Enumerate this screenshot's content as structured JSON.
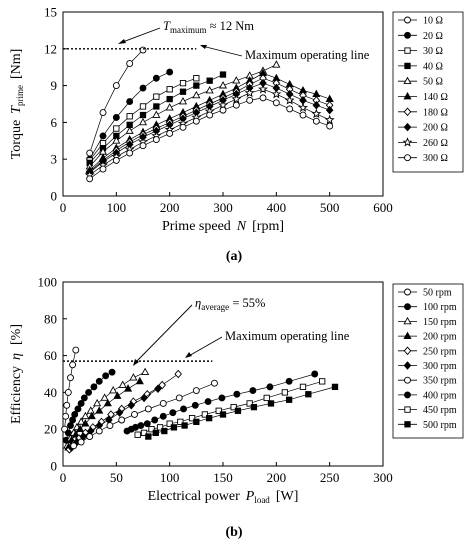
{
  "chart_data": [
    {
      "panel_label": "(a)",
      "type": "scatter",
      "ylabel": "Torque",
      "ylabel_symbol": "T",
      "ylabel_sub": "prime",
      "ylabel_unit": "[Nm]",
      "xlabel": "Prime speed",
      "xlabel_symbol": "N",
      "xlabel_unit": "[rpm]",
      "xlim": [
        0,
        600
      ],
      "ylim": [
        0,
        15
      ],
      "xticks": [
        "0",
        "100",
        "200",
        "300",
        "400",
        "500",
        "600"
      ],
      "yticks": [
        "0",
        "3",
        "6",
        "9",
        "12",
        "15"
      ],
      "annotations": [
        {
          "prefix": "T",
          "sub": "maximum",
          "text": " ≈ 12 Nm",
          "value": 12,
          "line_x_range": [
            0,
            250
          ]
        },
        {
          "text": "Maximum operating line"
        }
      ],
      "legend_position": "right",
      "series": [
        {
          "name": "10 Ω",
          "marker": "circle-open",
          "x": [
            50,
            75,
            100,
            125,
            150
          ],
          "y": [
            3.5,
            6.8,
            9.0,
            10.8,
            11.9
          ]
        },
        {
          "name": "20 Ω",
          "marker": "circle-filled",
          "x": [
            50,
            75,
            100,
            125,
            150,
            175,
            200
          ],
          "y": [
            3.0,
            4.9,
            6.4,
            7.7,
            8.8,
            9.6,
            10.1
          ]
        },
        {
          "name": "30 Ω",
          "marker": "square-open",
          "x": [
            50,
            75,
            100,
            125,
            150,
            175,
            200,
            225,
            250
          ],
          "y": [
            2.9,
            4.3,
            5.5,
            6.5,
            7.3,
            8.1,
            8.7,
            9.2,
            9.6
          ]
        },
        {
          "name": "40 Ω",
          "marker": "square-filled",
          "x": [
            50,
            75,
            100,
            125,
            150,
            175,
            200,
            225,
            250,
            275,
            300
          ],
          "y": [
            2.7,
            3.9,
            4.9,
            5.8,
            6.6,
            7.3,
            7.9,
            8.5,
            9.0,
            9.4,
            9.9
          ]
        },
        {
          "name": "50 Ω",
          "marker": "triangle-open",
          "x": [
            50,
            75,
            100,
            125,
            150,
            175,
            200,
            225,
            250,
            275,
            300,
            325,
            350,
            375,
            400
          ],
          "y": [
            2.4,
            3.6,
            4.5,
            5.3,
            6.0,
            6.6,
            7.2,
            7.7,
            8.2,
            8.6,
            9.0,
            9.4,
            9.8,
            10.2,
            10.7
          ]
        },
        {
          "name": "140 Ω",
          "marker": "triangle-filled",
          "x": [
            50,
            75,
            100,
            125,
            150,
            175,
            200,
            225,
            250,
            275,
            300,
            325,
            350,
            375,
            400,
            425,
            450,
            475,
            500
          ],
          "y": [
            2.1,
            3.1,
            3.9,
            4.6,
            5.2,
            5.8,
            6.3,
            6.8,
            7.3,
            7.8,
            8.3,
            8.8,
            9.4,
            10.0,
            9.6,
            9.1,
            8.6,
            8.3,
            7.9
          ]
        },
        {
          "name": "180 Ω",
          "marker": "diamond-open",
          "x": [
            50,
            75,
            100,
            125,
            150,
            175,
            200,
            225,
            250,
            275,
            300,
            325,
            350,
            375,
            400,
            425,
            450,
            475,
            500
          ],
          "y": [
            2.0,
            2.9,
            3.7,
            4.4,
            5.0,
            5.5,
            6.0,
            6.5,
            7.0,
            7.5,
            8.0,
            8.5,
            9.1,
            9.6,
            9.2,
            8.7,
            8.2,
            7.8,
            7.4
          ]
        },
        {
          "name": "200 Ω",
          "marker": "diamond-filled",
          "x": [
            50,
            75,
            100,
            125,
            150,
            175,
            200,
            225,
            250,
            275,
            300,
            325,
            350,
            375,
            400,
            425,
            450,
            475,
            500
          ],
          "y": [
            1.9,
            2.8,
            3.5,
            4.2,
            4.8,
            5.3,
            5.8,
            6.3,
            6.8,
            7.3,
            7.8,
            8.3,
            8.8,
            9.2,
            8.8,
            8.3,
            7.8,
            7.4,
            7.0
          ]
        },
        {
          "name": "260 Ω",
          "marker": "star-open",
          "x": [
            50,
            75,
            100,
            125,
            150,
            175,
            200,
            225,
            250,
            275,
            300,
            325,
            350,
            375,
            400,
            425,
            450,
            475,
            500
          ],
          "y": [
            1.7,
            2.5,
            3.2,
            3.8,
            4.4,
            4.9,
            5.4,
            5.9,
            6.4,
            6.9,
            7.4,
            7.9,
            8.4,
            8.7,
            8.3,
            7.8,
            7.2,
            6.7,
            6.2
          ]
        },
        {
          "name": "300 Ω",
          "marker": "circle-open",
          "x": [
            50,
            75,
            100,
            125,
            150,
            175,
            200,
            225,
            250,
            275,
            300,
            325,
            350,
            375,
            400,
            425,
            450,
            475,
            500
          ],
          "y": [
            1.4,
            2.2,
            2.9,
            3.5,
            4.1,
            4.6,
            5.1,
            5.6,
            6.1,
            6.6,
            7.0,
            7.4,
            7.8,
            8.0,
            7.6,
            7.1,
            6.6,
            6.1,
            5.7
          ]
        }
      ]
    },
    {
      "panel_label": "(b)",
      "type": "scatter",
      "ylabel": "Efficiency",
      "ylabel_symbol": "η",
      "ylabel_unit": "[%]",
      "xlabel": "Electrical power",
      "xlabel_symbol": "P",
      "xlabel_sub": "load",
      "xlabel_unit": "[W]",
      "xlim": [
        0,
        300
      ],
      "ylim": [
        0,
        100
      ],
      "xticks": [
        "0",
        "50",
        "100",
        "150",
        "200",
        "250",
        "300"
      ],
      "yticks": [
        "0",
        "20",
        "40",
        "60",
        "80",
        "100"
      ],
      "annotations": [
        {
          "prefix": "η",
          "sub": "average",
          "text": " = 55%",
          "value": 55
        },
        {
          "text": "Maximum operating line",
          "value": 57,
          "line_x_range": [
            0,
            140
          ]
        }
      ],
      "legend_position": "right",
      "series": [
        {
          "name": "50 rpm",
          "marker": "circle-open",
          "x": [
            1.5,
            2.5,
            3.5,
            5,
            7,
            9,
            12
          ],
          "y": [
            20,
            27,
            33,
            40,
            48,
            55,
            63
          ]
        },
        {
          "name": "100 rpm",
          "marker": "circle-filled",
          "x": [
            3,
            5,
            7,
            9,
            11,
            14,
            17,
            20,
            24,
            29,
            34,
            40,
            46
          ],
          "y": [
            14,
            18,
            22,
            25,
            28,
            31,
            34,
            37,
            40,
            43,
            46,
            49,
            51
          ]
        },
        {
          "name": "150 rpm",
          "marker": "triangle-open",
          "x": [
            4,
            7,
            10,
            13,
            17,
            21,
            26,
            32,
            39,
            47,
            56,
            66,
            77
          ],
          "y": [
            11,
            15,
            18,
            21,
            24,
            27,
            30,
            34,
            37,
            41,
            44,
            48,
            51
          ]
        },
        {
          "name": "200 rpm",
          "marker": "triangle-filled",
          "x": [
            5,
            8,
            12,
            16,
            21,
            27,
            34,
            42,
            51,
            61,
            72
          ],
          "y": [
            10,
            14,
            17,
            20,
            23,
            27,
            30,
            34,
            38,
            42,
            46
          ]
        },
        {
          "name": "250 rpm",
          "marker": "diamond-open",
          "x": [
            6,
            10,
            15,
            21,
            28,
            36,
            45,
            55,
            66,
            79,
            93,
            108
          ],
          "y": [
            9,
            12,
            15,
            18,
            21,
            24,
            28,
            31,
            35,
            39,
            44,
            50
          ]
        },
        {
          "name": "300 rpm",
          "marker": "diamond-filled",
          "x": [
            8,
            13,
            19,
            26,
            34,
            43,
            53,
            64,
            76,
            89
          ],
          "y": [
            10,
            13,
            16,
            19,
            22,
            25,
            29,
            33,
            37,
            42
          ]
        },
        {
          "name": "350 rpm",
          "marker": "circle-open",
          "x": [
            10,
            17,
            25,
            34,
            44,
            55,
            67,
            80,
            94,
            109,
            125,
            142
          ],
          "y": [
            11,
            13,
            16,
            19,
            22,
            25,
            28,
            31,
            34,
            37,
            41,
            45
          ]
        },
        {
          "name": "400 rpm",
          "marker": "circle-filled",
          "x": [
            60,
            64,
            68,
            73,
            79,
            86,
            94,
            103,
            113,
            124,
            136,
            149,
            163,
            178,
            194,
            212,
            236
          ],
          "y": [
            19,
            20,
            21,
            22,
            23,
            25,
            27,
            29,
            31,
            33,
            35,
            37,
            39,
            41,
            43,
            46,
            50
          ]
        },
        {
          "name": "450 rpm",
          "marker": "square-open",
          "x": [
            70,
            76,
            83,
            91,
            100,
            110,
            121,
            133,
            146,
            160,
            175,
            191,
            208,
            225,
            243
          ],
          "y": [
            17,
            18,
            20,
            21,
            23,
            24,
            26,
            28,
            30,
            32,
            34,
            37,
            40,
            43,
            46
          ]
        },
        {
          "name": "500 rpm",
          "marker": "square-filled",
          "x": [
            80,
            87,
            95,
            104,
            114,
            125,
            137,
            150,
            164,
            179,
            195,
            212,
            230,
            255
          ],
          "y": [
            16,
            18,
            19,
            21,
            22,
            24,
            26,
            28,
            30,
            32,
            34,
            36,
            39,
            43
          ]
        }
      ]
    }
  ]
}
